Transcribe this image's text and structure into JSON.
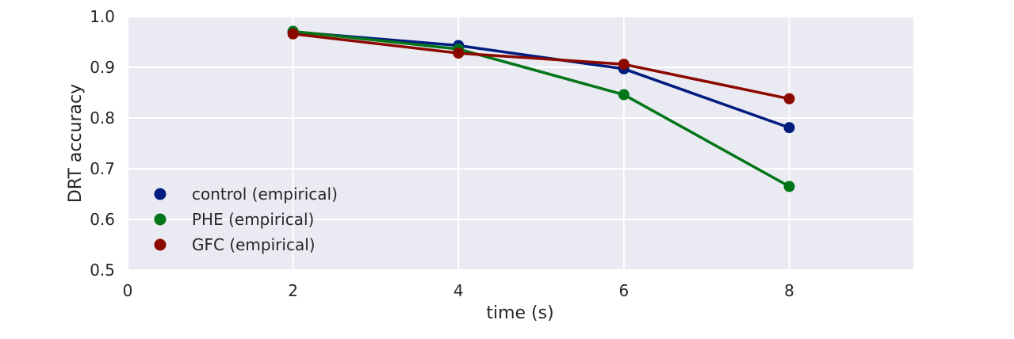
{
  "chart_data": {
    "type": "line",
    "xlabel": "time (s)",
    "ylabel": "DRT accuracy",
    "xlim": [
      0,
      9.5
    ],
    "ylim": [
      0.5,
      1.0
    ],
    "xticks": [
      0,
      2,
      4,
      6,
      8
    ],
    "xtick_labels": [
      "0",
      "2",
      "4",
      "6",
      "8"
    ],
    "yticks": [
      0.5,
      0.6,
      0.7,
      0.8,
      0.9,
      1.0
    ],
    "ytick_labels": [
      "0.5",
      "0.6",
      "0.7",
      "0.8",
      "0.9",
      "1.0"
    ],
    "grid": true,
    "legend_position": "lower-left",
    "x": [
      2,
      4,
      6,
      8
    ],
    "series": [
      {
        "name": "control (empirical)",
        "color": "#001c7f",
        "values": [
          0.97,
          0.943,
          0.897,
          0.781
        ]
      },
      {
        "name": "PHE (empirical)",
        "color": "#017517",
        "values": [
          0.971,
          0.936,
          0.846,
          0.665
        ]
      },
      {
        "name": "GFC (empirical)",
        "color": "#8c0900",
        "values": [
          0.966,
          0.928,
          0.906,
          0.838
        ]
      }
    ]
  }
}
